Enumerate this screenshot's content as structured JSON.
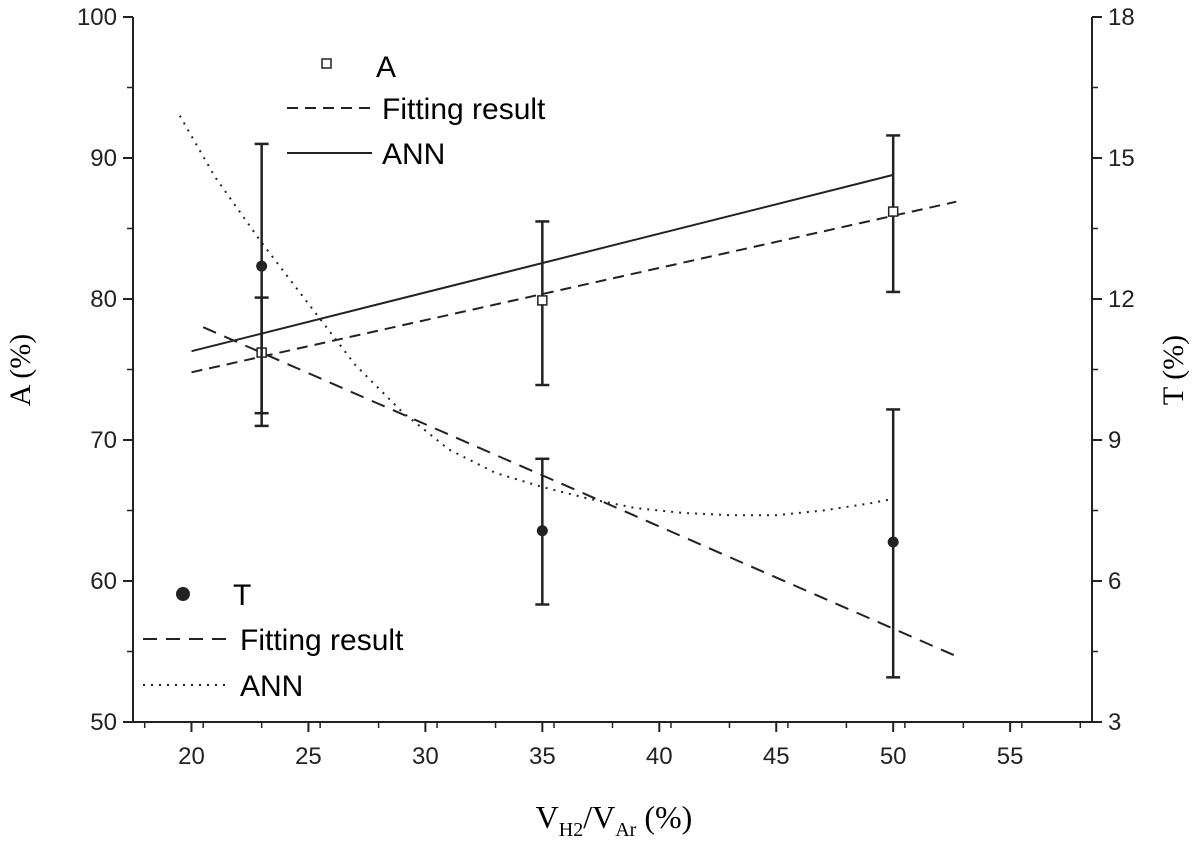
{
  "chart_data": {
    "type": "scatter",
    "x_axis": {
      "label_main": "V",
      "label_sub1": "H2",
      "label_mid": "/V",
      "label_sub2": "Ar",
      "label_end": " (%)",
      "range": [
        17.5,
        58.5
      ],
      "ticks": [
        20,
        25,
        30,
        35,
        40,
        45,
        50,
        55
      ],
      "tick_labels": [
        "20",
        "25",
        "30",
        "35",
        "40",
        "45",
        "50",
        "55"
      ]
    },
    "y_left": {
      "label": "A (%)",
      "range": [
        50,
        100
      ],
      "ticks": [
        50,
        60,
        70,
        80,
        90,
        100
      ],
      "tick_labels": [
        "50",
        "60",
        "70",
        "80",
        "90",
        "100"
      ]
    },
    "y_right": {
      "label": "T (%)",
      "range": [
        3,
        18
      ],
      "ticks": [
        3,
        6,
        9,
        12,
        15,
        18
      ],
      "tick_labels": [
        "3",
        "6",
        "9",
        "12",
        "15",
        "18"
      ]
    },
    "series_A": {
      "axis": "left",
      "points": [
        {
          "x": 23,
          "y": 76.2,
          "err_low": 71.9,
          "err_high": 80.1
        },
        {
          "x": 35,
          "y": 79.9,
          "err_low": 73.9,
          "err_high": 85.5
        },
        {
          "x": 50,
          "y": 86.2,
          "err_low": 80.5,
          "err_high": 91.6
        }
      ],
      "fit": {
        "x": [
          20,
          52.7
        ],
        "y": [
          74.8,
          86.9
        ]
      },
      "ann": {
        "x": [
          20,
          50
        ],
        "y": [
          76.3,
          88.8
        ]
      }
    },
    "series_T": {
      "axis": "right",
      "points": [
        {
          "x": 23,
          "y": 12.7,
          "err_low": 9.3,
          "err_high": 15.3
        },
        {
          "x": 35,
          "y": 7.07,
          "err_low": 5.5,
          "err_high": 8.6
        },
        {
          "x": 50,
          "y": 6.83,
          "err_low": 3.95,
          "err_high": 9.65
        }
      ],
      "fit": {
        "x": [
          20.5,
          52.7
        ],
        "y": [
          11.4,
          4.4
        ]
      },
      "ann": {
        "x": [
          19.5,
          21,
          23,
          25,
          27,
          29,
          31,
          33,
          35,
          37,
          39,
          41,
          43,
          45,
          47,
          49,
          50
        ],
        "y": [
          15.9,
          14.6,
          13.2,
          11.9,
          10.6,
          9.6,
          8.8,
          8.3,
          8.0,
          7.75,
          7.55,
          7.45,
          7.4,
          7.4,
          7.5,
          7.65,
          7.75
        ]
      }
    },
    "legend_A": {
      "marker_label": "A",
      "fit_label": "Fitting result",
      "ann_label": "ANN"
    },
    "legend_T": {
      "marker_label": "T",
      "fit_label": "Fitting result",
      "ann_label": "ANN"
    },
    "grid": false
  }
}
